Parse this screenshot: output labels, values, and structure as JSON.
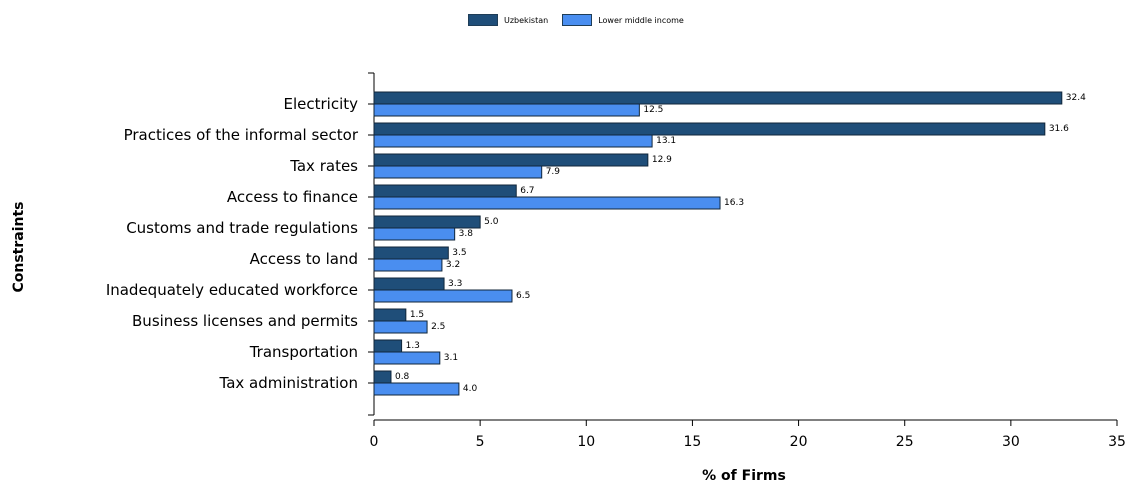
{
  "chart_data": {
    "type": "bar",
    "orientation": "horizontal",
    "title": "",
    "xlabel": "% of Firms",
    "ylabel": "Constraints",
    "xlim": [
      0,
      35
    ],
    "xticks": [
      0,
      5,
      10,
      15,
      20,
      25,
      30,
      35
    ],
    "grid": false,
    "legend_position": "top-center",
    "categories": [
      "Electricity",
      "Practices of the informal sector",
      "Tax rates",
      "Access to finance",
      "Customs and trade regulations",
      "Access to land",
      "Inadequately educated workforce",
      "Business licenses and permits",
      "Transportation",
      "Tax administration"
    ],
    "series": [
      {
        "name": "Uzbekistan",
        "color": "#1f4e79",
        "values": [
          32.4,
          31.6,
          12.9,
          6.7,
          5.0,
          3.5,
          3.3,
          1.5,
          1.3,
          0.8
        ],
        "labels": [
          "32.4",
          "31.6",
          "12.9",
          "6.7",
          "5.0",
          "3.5",
          "3.3",
          "1.5",
          "1.3",
          "0.8"
        ]
      },
      {
        "name": "Lower middle income",
        "color": "#4a8ef0",
        "values": [
          12.5,
          13.1,
          7.9,
          16.3,
          3.8,
          3.2,
          6.5,
          2.5,
          3.1,
          4.0
        ],
        "labels": [
          "12.5",
          "13.1",
          "7.9",
          "16.3",
          "3.8",
          "3.2",
          "6.5",
          "2.5",
          "3.1",
          "4.0"
        ]
      }
    ]
  }
}
